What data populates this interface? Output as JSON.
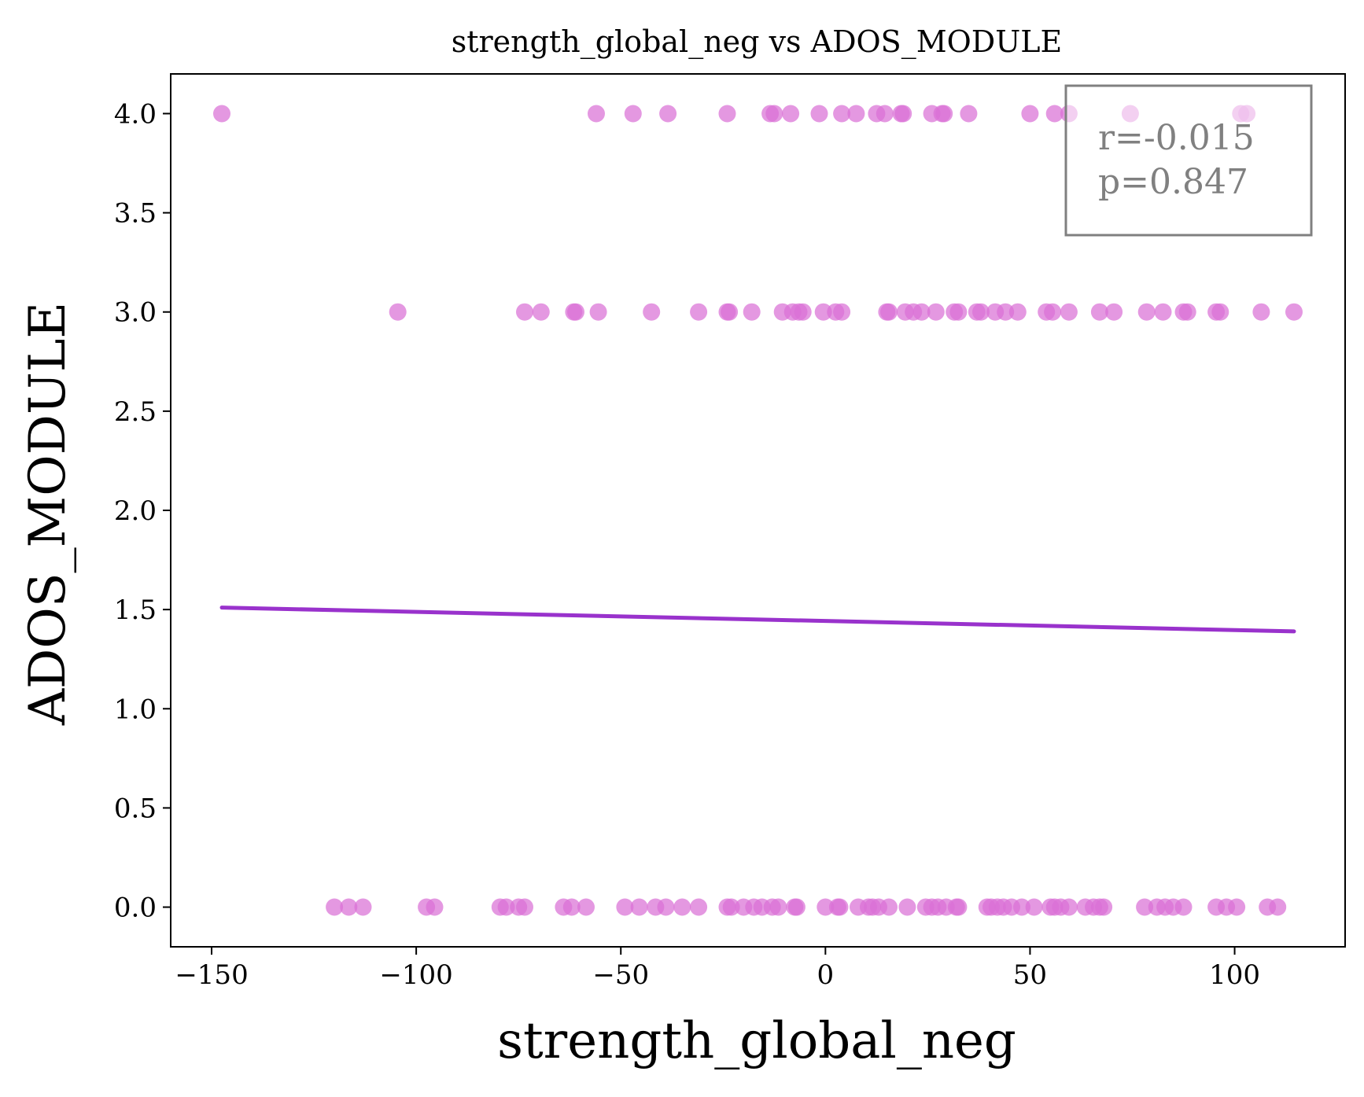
{
  "chart_data": {
    "type": "scatter",
    "title": "strength_global_neg vs ADOS_MODULE",
    "xlabel": "strength_global_neg",
    "ylabel": "ADOS_MODULE",
    "xlim": [
      -160,
      127
    ],
    "ylim": [
      -0.2,
      4.2
    ],
    "x_ticks": [
      -150,
      -100,
      -50,
      0,
      50,
      100
    ],
    "x_tick_labels": [
      "−150",
      "−100",
      "−50",
      "0",
      "50",
      "100"
    ],
    "y_ticks": [
      0.0,
      0.5,
      1.0,
      1.5,
      2.0,
      2.5,
      3.0,
      3.5,
      4.0
    ],
    "y_tick_labels": [
      "0.0",
      "0.5",
      "1.0",
      "1.5",
      "2.0",
      "2.5",
      "3.0",
      "3.5",
      "4.0"
    ],
    "grid": false,
    "point_color": "#da70d6",
    "line_color": "#9932cc",
    "series": [
      {
        "values_y": 4.0,
        "x": [
          -147.5,
          -56,
          -47,
          -38.5,
          -24,
          -13.5,
          -12.5,
          -8.5,
          -1.5,
          4,
          7.5,
          12.5,
          14.5,
          18.5,
          19,
          26,
          28.5,
          29,
          35,
          50,
          56,
          59.5,
          74.5,
          101.5,
          103
        ]
      },
      {
        "values_y": 3.0,
        "x": [
          -104.5,
          -73.5,
          -69.5,
          -61.5,
          -61,
          -55.5,
          -42.5,
          -31,
          -24,
          -23.5,
          -18,
          -10.5,
          -8,
          -6.5,
          -5.5,
          -0.5,
          2.5,
          4,
          15,
          15.5,
          19.5,
          21.5,
          23.5,
          27,
          31.5,
          32.5,
          37,
          38,
          41.5,
          44,
          47,
          54,
          55.5,
          59.5,
          67,
          70.5,
          78.5,
          82.5,
          87.5,
          88.5,
          95.5,
          96.5,
          106.5,
          114.5
        ]
      },
      {
        "values_y": 0.0,
        "x": [
          -120,
          -116.5,
          -113,
          -97.5,
          -95.5,
          -79.5,
          -78,
          -75,
          -73.5,
          -64,
          -62,
          -58.5,
          -49,
          -45.5,
          -41.5,
          -39,
          -35,
          -31,
          -24,
          -23,
          -20,
          -17.5,
          -15.5,
          -13,
          -11.5,
          -7.5,
          -7,
          0,
          3,
          3.5,
          8,
          10.5,
          11.5,
          13,
          15.5,
          20,
          24.5,
          26,
          27.5,
          29.5,
          32,
          32.5,
          39.5,
          40.5,
          42,
          43.5,
          45.5,
          48,
          51,
          55,
          56,
          57.5,
          59.5,
          63.5,
          65.5,
          67,
          68,
          78,
          81,
          83,
          85,
          87.5,
          95.5,
          98,
          100.5,
          108,
          110.5
        ]
      }
    ],
    "regression": {
      "x": [
        -147.5,
        114.5
      ],
      "y": [
        1.51,
        1.39
      ]
    },
    "annotation": {
      "r": "r=-0.015",
      "p": "p=0.847",
      "placement": "top-right"
    }
  }
}
